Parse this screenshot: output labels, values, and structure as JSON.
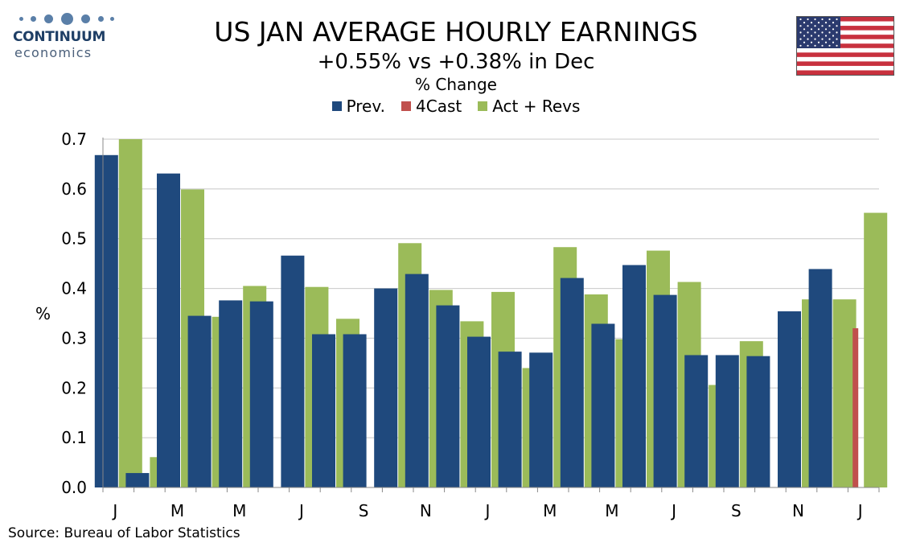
{
  "logo": {
    "line1": "CONTINUUM",
    "line2": "economics",
    "colors": {
      "dots": "#5a7fa8",
      "text": "#1f3f66"
    }
  },
  "flag": {
    "icon": "us-flag-icon"
  },
  "chart_data": {
    "type": "bar",
    "title": "US JAN AVERAGE HOURLY EARNINGS",
    "subtitle": "+0.55% vs +0.38% in Dec",
    "unit_title": "% Change",
    "ylabel": "%",
    "xlabel": "",
    "ylim": [
      0,
      0.7
    ],
    "yticks": [
      "0.0",
      "0.1",
      "0.2",
      "0.3",
      "0.4",
      "0.5",
      "0.6",
      "0.7"
    ],
    "categories": [
      "J",
      "",
      "M",
      "",
      "M",
      "",
      "J",
      "",
      "S",
      "",
      "N",
      "",
      "J",
      "",
      "M",
      "",
      "M",
      "",
      "J",
      "",
      "S",
      "",
      "N",
      "",
      "J"
    ],
    "series": [
      {
        "name": "Prev.",
        "color": "#1f497d",
        "values": [
          0.668,
          0.029,
          0.631,
          0.345,
          0.376,
          0.374,
          0.466,
          0.308,
          0.308,
          0.4,
          0.429,
          0.366,
          0.303,
          0.273,
          0.271,
          0.421,
          0.329,
          0.447,
          0.387,
          0.266,
          0.266,
          0.264,
          0.354,
          0.439,
          null
        ]
      },
      {
        "name": "4Cast",
        "color": "#c0504d",
        "values": [
          null,
          null,
          null,
          null,
          null,
          null,
          null,
          null,
          null,
          null,
          null,
          null,
          null,
          null,
          null,
          null,
          null,
          null,
          null,
          null,
          null,
          null,
          null,
          null,
          0.32
        ]
      },
      {
        "name": "Act + Revs",
        "color": "#9bbb59",
        "values": [
          0.7,
          0.061,
          0.599,
          0.343,
          0.405,
          null,
          0.403,
          0.339,
          null,
          0.491,
          0.397,
          0.334,
          0.393,
          0.24,
          0.483,
          0.388,
          0.298,
          0.476,
          0.413,
          0.206,
          0.294,
          null,
          0.378,
          0.378,
          0.552
        ]
      }
    ],
    "legend_position": "top-center",
    "grid": true
  },
  "source": "Source: Bureau of Labor Statistics"
}
